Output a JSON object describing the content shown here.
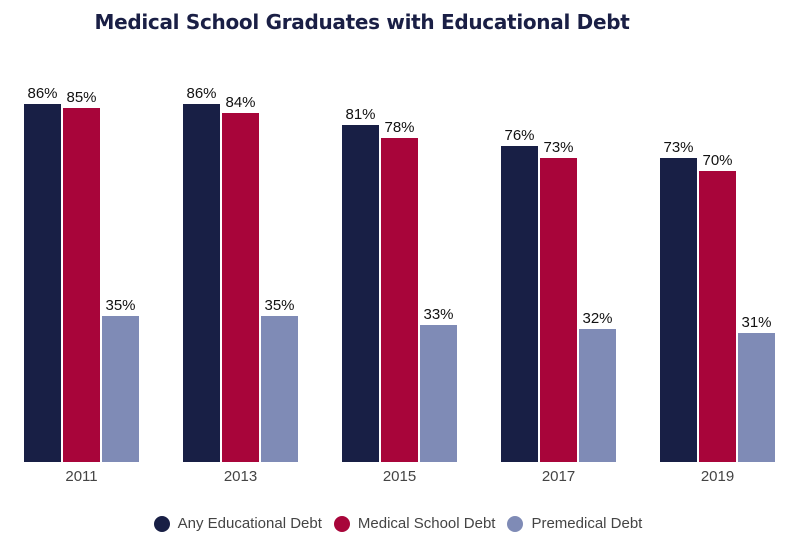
{
  "chart_data": {
    "type": "bar",
    "title": "Medical School Graduates with Educational Debt",
    "categories": [
      "2011",
      "2013",
      "2015",
      "2017",
      "2019"
    ],
    "series": [
      {
        "name": "Any Educational Debt",
        "color": "#181f45",
        "values": [
          86,
          86,
          81,
          76,
          73
        ]
      },
      {
        "name": "Medical School Debt",
        "color": "#a8053a",
        "values": [
          85,
          84,
          78,
          73,
          70
        ]
      },
      {
        "name": "Premedical Debt",
        "color": "#7f8bb6",
        "values": [
          35,
          35,
          33,
          32,
          31
        ]
      }
    ],
    "value_suffix": "%",
    "xlabel": "",
    "ylabel": "",
    "ylim": [
      0,
      100
    ],
    "grid": false,
    "legend_position": "bottom"
  }
}
